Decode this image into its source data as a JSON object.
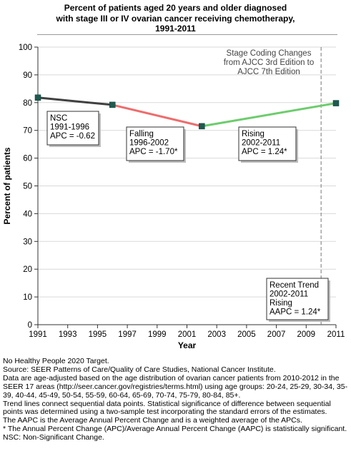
{
  "title_lines": [
    "Percent of patients aged 20 years and older diagnosed",
    "with stage III or IV ovarian cancer  receiving chemotherapy,",
    "1991-2011"
  ],
  "chart_data": {
    "type": "line",
    "xlabel": "Year",
    "ylabel": "Percent of patients",
    "xlim": [
      1991,
      2011
    ],
    "ylim": [
      0,
      100
    ],
    "x_ticks": [
      1991,
      1993,
      1995,
      1997,
      1999,
      2001,
      2003,
      2005,
      2007,
      2009,
      2011
    ],
    "y_ticks": [
      0,
      10,
      20,
      30,
      40,
      50,
      60,
      70,
      80,
      90,
      100
    ],
    "grid": true,
    "points": [
      {
        "x": 1991,
        "y": 81.8
      },
      {
        "x": 1996,
        "y": 79.2
      },
      {
        "x": 2002,
        "y": 71.5
      },
      {
        "x": 2011,
        "y": 79.8
      }
    ],
    "segments": [
      {
        "from": 1991,
        "to": 1996,
        "color": "#404040"
      },
      {
        "from": 1996,
        "to": 2002,
        "color": "#ee6c6c"
      },
      {
        "from": 2002,
        "to": 2011,
        "color": "#6dcc6d"
      }
    ],
    "point_color": "#1e5a50",
    "stage_change": {
      "x": 2010,
      "lines": [
        "Stage Coding Changes",
        "from AJCC 3rd Edition to",
        "AJCC 7th Edition"
      ]
    },
    "annotations": [
      {
        "lines": [
          "NSC",
          "1991-1996",
          "APC = -0.62"
        ]
      },
      {
        "lines": [
          "Falling",
          "1996-2002",
          "APC = -1.70*"
        ]
      },
      {
        "lines": [
          "Rising",
          "2002-2011",
          "APC =  1.24*"
        ]
      },
      {
        "lines": [
          "Recent Trend",
          "2002-2011",
          "Rising",
          "AAPC =  1.24*"
        ]
      }
    ]
  },
  "notes": [
    "No Healthy People 2020 Target.",
    "Source: SEER Patterns of Care/Quality of Care Studies, National Cancer Institute.",
    "Data are age-adjusted based on the age distribution of ovarian cancer patients from 2010-2012 in the SEER 17 areas (http://seer.cancer.gov/registries/terms.html) using age groups: 20-24, 25-29, 30-34, 35-39, 40-44, 45-49, 50-54, 55-59, 60-64, 65-69, 70-74, 75-79, 80-84, 85+.",
    "Trend lines connect sequential data points. Statistical significance of difference between sequential points was determined using a two-sample test incorporating the standard errors of the estimates.",
    "The AAPC is the Average Annual Percent Change and is a weighted average of the APCs.",
    "* The Annual Percent Change (APC)/Average Annual Percent Change (AAPC) is statistically significant.",
    "NSC: Non-Significant Change."
  ]
}
